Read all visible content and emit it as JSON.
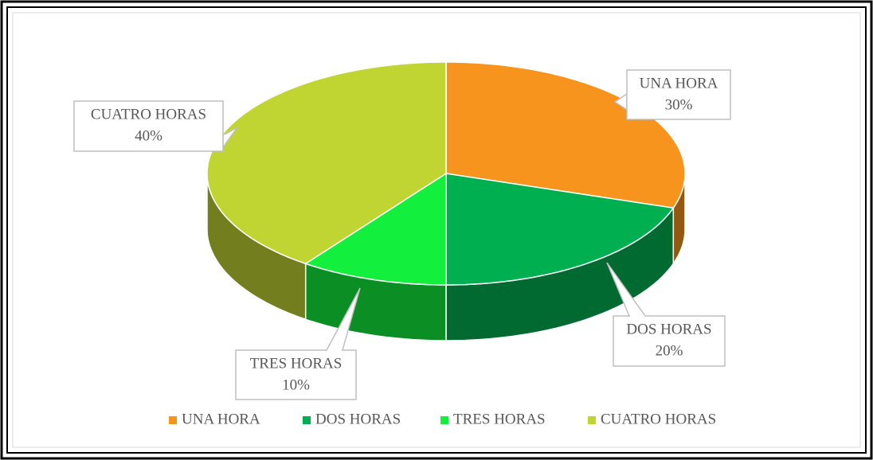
{
  "chart_data": {
    "type": "pie3d",
    "categories": [
      "UNA HORA",
      "DOS HORAS",
      "TRES HORAS",
      "CUATRO HORAS"
    ],
    "values": [
      30,
      20,
      10,
      40
    ],
    "value_labels": [
      "30%",
      "20%",
      "10%",
      "40%"
    ],
    "colors": [
      "#f7941d",
      "#00b050",
      "#13ef3d",
      "#c0d432"
    ],
    "legend": "bottom"
  }
}
